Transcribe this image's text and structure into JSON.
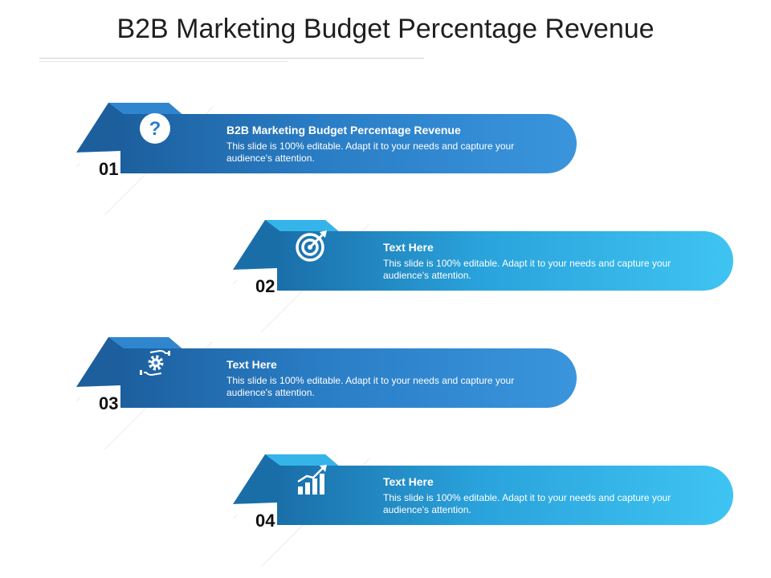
{
  "slide": {
    "title": "B2B Marketing Budget Percentage Revenue"
  },
  "items": [
    {
      "number": "01",
      "heading": "B2B Marketing Budget Percentage Revenue",
      "text": "This slide is 100% editable. Adapt it to your needs and capture your audience's attention.",
      "icon": "question-icon"
    },
    {
      "number": "02",
      "heading": "Text Here",
      "text": "This slide is 100% editable. Adapt it to your needs and capture your audience's attention.",
      "icon": "target-icon"
    },
    {
      "number": "03",
      "heading": "Text Here",
      "text": "This slide is 100% editable. Adapt it to your needs and capture your audience's attention.",
      "icon": "gear-hands-icon"
    },
    {
      "number": "04",
      "heading": "Text Here",
      "text": "This slide is 100% editable. Adapt it to your needs and capture your audience's attention.",
      "icon": "growth-chart-icon"
    }
  ],
  "colors": {
    "dark_blue": "#1c5f9e",
    "mid_blue": "#2a7ec6",
    "light_blue": "#3fc4f2"
  }
}
